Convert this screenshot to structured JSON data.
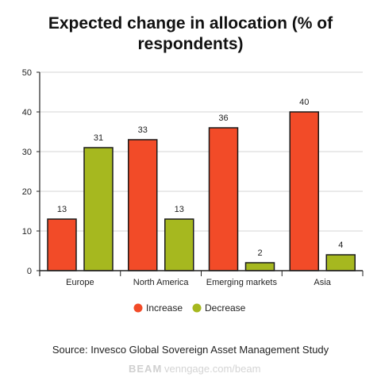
{
  "chart_data": {
    "type": "bar",
    "title_lines": [
      "Expected change in allocation (% of",
      "respondents)"
    ],
    "categories": [
      "Europe",
      "North America",
      "Emerging markets",
      "Asia"
    ],
    "series": [
      {
        "name": "Increase",
        "values": [
          13,
          33,
          36,
          40
        ],
        "color": "#f24b28"
      },
      {
        "name": "Decrease",
        "values": [
          31,
          13,
          2,
          4
        ],
        "color": "#a6b81f"
      }
    ],
    "y_ticks": [
      0,
      10,
      20,
      30,
      40,
      50
    ],
    "ylim": [
      0,
      50
    ],
    "grid": true,
    "legend": "bottom-center"
  },
  "source": "Source: Invesco Global Sovereign Asset Management Study",
  "watermark": {
    "logo": "BEAM",
    "text": "venngage.com/beam"
  }
}
